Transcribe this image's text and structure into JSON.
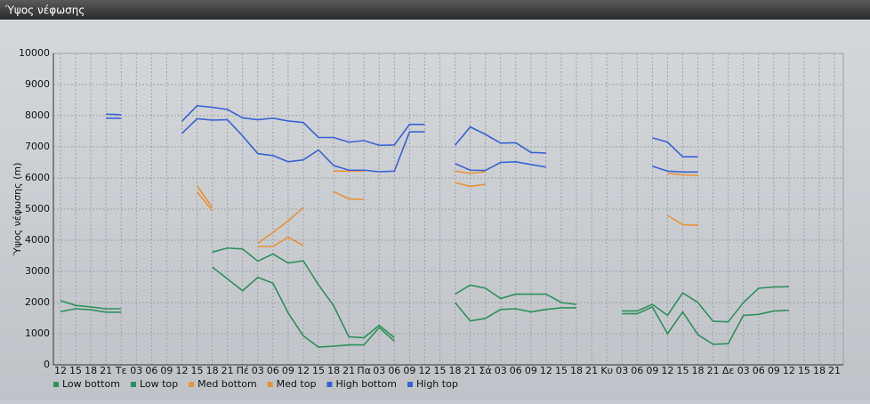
{
  "window_title": "Ύψος νέφωσης",
  "chart_data": {
    "type": "line",
    "y_label": "Ύψος νέφωσης (m)",
    "categories": [
      "12",
      "15",
      "18",
      "21",
      "Τε",
      "03",
      "06",
      "09",
      "12",
      "15",
      "18",
      "21",
      "Πέ",
      "03",
      "06",
      "09",
      "12",
      "15",
      "18",
      "21",
      "Πα",
      "03",
      "06",
      "09",
      "12",
      "15",
      "18",
      "21",
      "Σά",
      "03",
      "06",
      "09",
      "12",
      "15",
      "18",
      "21",
      "Κυ",
      "03",
      "06",
      "09",
      "12",
      "15",
      "18",
      "21",
      "Δε",
      "03",
      "06",
      "09",
      "12",
      "15",
      "18",
      "21"
    ],
    "ylim": [
      0,
      10000
    ],
    "yticks": [
      0,
      1000,
      2000,
      3000,
      4000,
      5000,
      6000,
      7000,
      8000,
      9000,
      10000
    ],
    "grid": true,
    "series": [
      {
        "name": "Low bottom",
        "color": "#2f8f5b",
        "values": [
          1710,
          1800,
          1770,
          1690,
          1690,
          null,
          null,
          null,
          null,
          null,
          3140,
          2760,
          2380,
          2810,
          2620,
          1670,
          930,
          570,
          600,
          640,
          640,
          1200,
          760,
          null,
          null,
          null,
          2000,
          1410,
          1490,
          1780,
          1800,
          1700,
          1780,
          1830,
          1830,
          null,
          null,
          1640,
          1640,
          1860,
          1000,
          1700,
          970,
          660,
          680,
          1590,
          1620,
          1730,
          1750,
          null,
          null,
          null
        ]
      },
      {
        "name": "Low top",
        "color": "#2f8f5b",
        "values": [
          2060,
          1910,
          1860,
          1800,
          1800,
          null,
          null,
          null,
          null,
          null,
          3620,
          3750,
          3720,
          3330,
          3560,
          3270,
          3340,
          2570,
          1900,
          900,
          870,
          1270,
          870,
          null,
          null,
          null,
          2270,
          2560,
          2460,
          2130,
          2270,
          2270,
          2270,
          2000,
          1940,
          null,
          null,
          1730,
          1730,
          1940,
          1590,
          2310,
          2000,
          1400,
          1380,
          2000,
          2460,
          2500,
          2510,
          null,
          null,
          null
        ]
      },
      {
        "name": "Med bottom",
        "color": "#e8923a",
        "values": [
          null,
          null,
          null,
          null,
          null,
          null,
          null,
          null,
          null,
          5550,
          4950,
          null,
          null,
          3800,
          3800,
          4100,
          3830,
          null,
          5560,
          5330,
          5310,
          null,
          null,
          null,
          null,
          null,
          5850,
          5730,
          5800,
          null,
          null,
          null,
          null,
          null,
          null,
          null,
          null,
          null,
          null,
          null,
          4800,
          4500,
          4480,
          null,
          null,
          null,
          null,
          null,
          null,
          null,
          null,
          null
        ]
      },
      {
        "name": "Med top",
        "color": "#e8923a",
        "values": [
          null,
          null,
          null,
          null,
          null,
          null,
          null,
          null,
          null,
          5750,
          5050,
          null,
          null,
          3900,
          4250,
          4620,
          5050,
          null,
          6220,
          6220,
          6220,
          null,
          null,
          null,
          null,
          null,
          6220,
          6150,
          6200,
          null,
          null,
          null,
          null,
          null,
          null,
          null,
          null,
          null,
          null,
          null,
          6150,
          6100,
          6080,
          null,
          null,
          null,
          null,
          null,
          null,
          null,
          null,
          null
        ]
      },
      {
        "name": "High bottom",
        "color": "#3a62d4",
        "values": [
          null,
          null,
          null,
          7920,
          7920,
          null,
          null,
          null,
          7430,
          7900,
          7860,
          7870,
          7350,
          6780,
          6720,
          6520,
          6580,
          6900,
          6400,
          6250,
          6250,
          6200,
          6220,
          7480,
          7480,
          null,
          6460,
          6250,
          6240,
          6500,
          6520,
          6430,
          6350,
          null,
          null,
          null,
          null,
          null,
          null,
          6380,
          6220,
          6190,
          6190,
          null,
          null,
          null,
          null,
          null,
          null,
          null,
          null,
          null
        ]
      },
      {
        "name": "High top",
        "color": "#3a62d4",
        "values": [
          null,
          null,
          null,
          8050,
          8030,
          null,
          null,
          null,
          7820,
          8320,
          8270,
          8200,
          7930,
          7870,
          7920,
          7830,
          7780,
          7300,
          7300,
          7150,
          7200,
          7050,
          7060,
          7720,
          7720,
          null,
          7050,
          7640,
          7400,
          7120,
          7130,
          6820,
          6800,
          null,
          null,
          null,
          null,
          null,
          null,
          7290,
          7150,
          6680,
          6680,
          null,
          null,
          null,
          null,
          null,
          null,
          null,
          null,
          null
        ]
      }
    ]
  }
}
